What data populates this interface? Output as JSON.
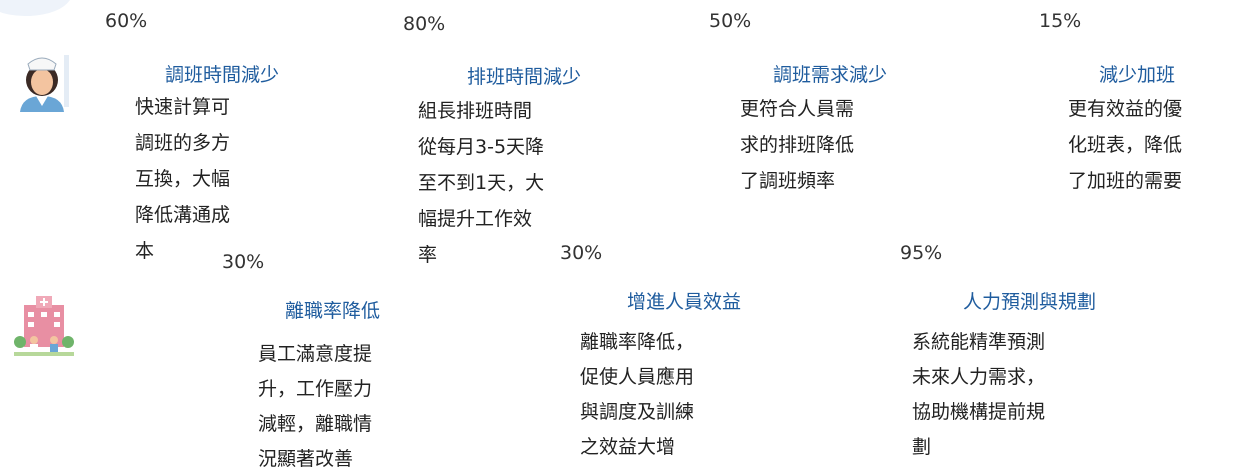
{
  "items": [
    {
      "percent": "60%",
      "title": "調班時間減少",
      "lines": [
        "快速計算可",
        "調班的多方",
        "互換，大幅",
        "降低溝通成",
        "本"
      ]
    },
    {
      "percent": "80%",
      "title": "排班時間減少",
      "lines": [
        "組長排班時間",
        "從每月3-5天降",
        "至不到1天，大",
        "幅提升工作效",
        "率"
      ]
    },
    {
      "percent": "50%",
      "title": "調班需求減少",
      "lines": [
        "更符合人員需",
        "求的排班降低",
        "了調班頻率"
      ]
    },
    {
      "percent": "15%",
      "title": "減少加班",
      "lines": [
        "更有效益的優",
        "化班表，降低",
        "了加班的需要"
      ]
    },
    {
      "percent": "30%",
      "title": "離職率降低",
      "lines": [
        "員工滿意度提",
        "升，工作壓力",
        "減輕，離職情",
        "況顯著改善"
      ]
    },
    {
      "percent": "30%",
      "title": "增進人員效益",
      "lines": [
        "離職率降低，",
        "促使人員應用",
        "與調度及訓練",
        "之效益大增"
      ]
    },
    {
      "percent": "95%",
      "title": "人力預測與規劃",
      "lines": [
        "系統能精準預測",
        "未來人力需求，",
        "協助機構提前規",
        "劃"
      ]
    }
  ]
}
